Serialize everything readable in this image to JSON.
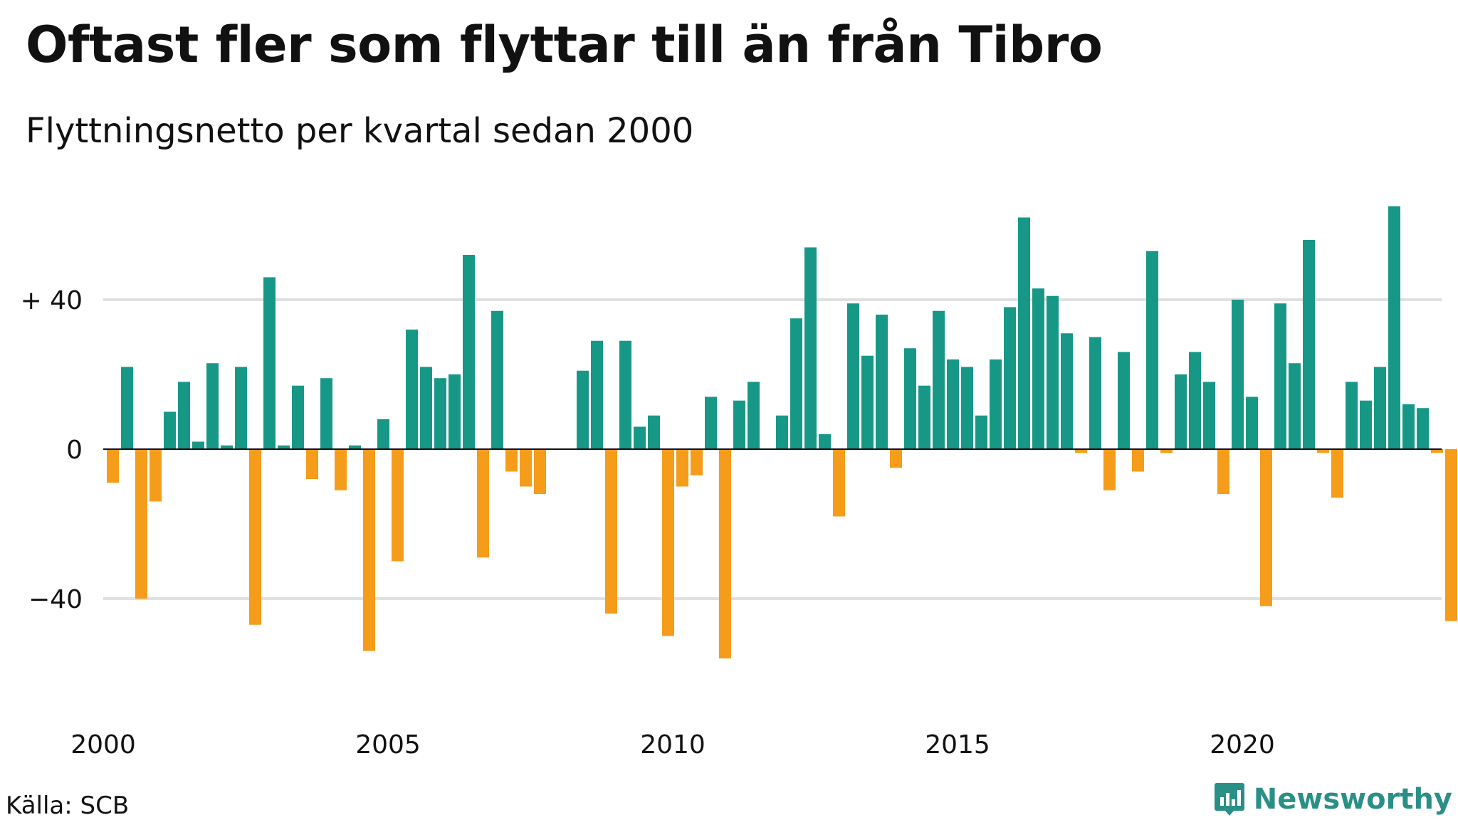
{
  "title": "Oftast fler som flyttar till än från Tibro",
  "subtitle": "Flyttningsnetto per kvartal sedan 2000",
  "source": "Källa: SCB",
  "brand": {
    "name": "Newsworthy",
    "icon": "newsworthy-logo-icon",
    "color": "#2a8f86"
  },
  "colors": {
    "positive": "#179887",
    "negative": "#f59c1a",
    "grid": "#e0e0e0",
    "zero_line": "#111111"
  },
  "chart_data": {
    "type": "bar",
    "title": "Oftast fler som flyttar till än från Tibro",
    "subtitle": "Flyttningsnetto per kvartal sedan 2000",
    "xlabel": "",
    "ylabel": "",
    "ylim": [
      -60,
      66
    ],
    "yticks": [
      40,
      0,
      -40
    ],
    "ytick_labels": [
      "+ 40",
      "0",
      "−40"
    ],
    "xticks": [
      2000,
      2005,
      2010,
      2015,
      2020
    ],
    "xtick_labels": [
      "2000",
      "2005",
      "2010",
      "2015",
      "2020"
    ],
    "grid": true,
    "x_start": "2000 Q1",
    "periods_per_year": 4,
    "values": [
      -9,
      22,
      -40,
      -14,
      10,
      18,
      2,
      23,
      1,
      22,
      -47,
      46,
      1,
      17,
      -8,
      19,
      -11,
      1,
      -54,
      8,
      -30,
      32,
      22,
      19,
      20,
      52,
      -29,
      37,
      -6,
      -10,
      -12,
      0,
      0,
      21,
      29,
      -44,
      29,
      6,
      9,
      -50,
      -10,
      -7,
      14,
      -56,
      13,
      18,
      0,
      9,
      35,
      54,
      4,
      -18,
      39,
      25,
      36,
      -5,
      27,
      17,
      37,
      24,
      22,
      9,
      24,
      38,
      62,
      43,
      41,
      31,
      -1,
      30,
      -11,
      26,
      -6,
      53,
      -1,
      20,
      26,
      18,
      -12,
      40,
      14,
      -42,
      39,
      23,
      56,
      -1,
      -13,
      18,
      13,
      22,
      65,
      12,
      11,
      -1,
      -46
    ]
  }
}
